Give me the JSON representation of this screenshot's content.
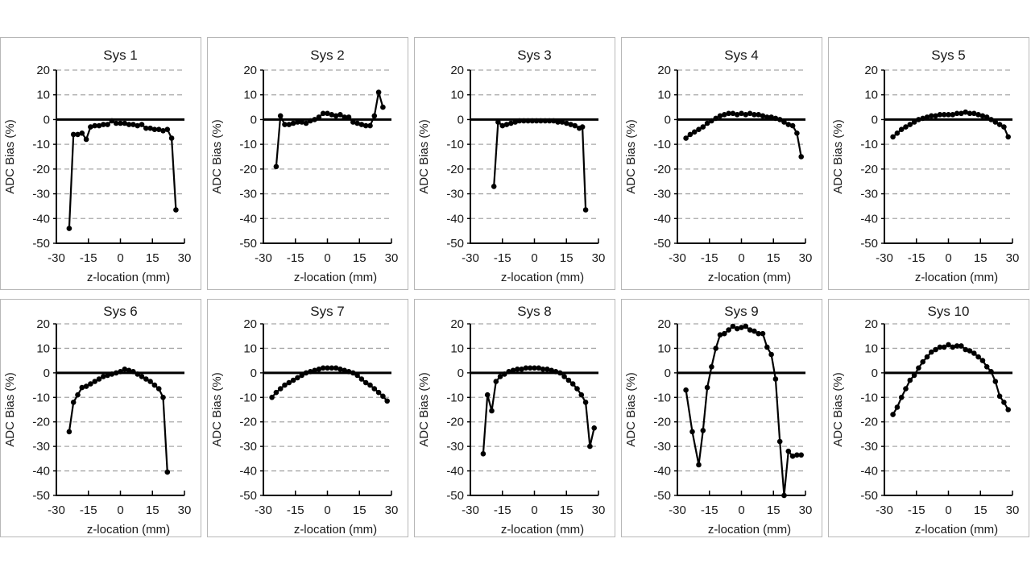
{
  "figure": {
    "background": "#ffffff",
    "panel_border_color": "#b7b7b7",
    "grid_color": "#a8a8a8",
    "series_color": "#000000",
    "zero_line_color": "#000000"
  },
  "axes": {
    "xlabel": "z-location (mm)",
    "ylabel": "ADC Bias (%)",
    "xlim": [
      -30,
      30
    ],
    "ylim": [
      -50,
      20
    ],
    "x_ticks": [
      -30,
      -15,
      0,
      15,
      30
    ],
    "y_ticks": [
      20,
      10,
      0,
      -10,
      -20,
      -30,
      -40,
      -50
    ],
    "gridline_values": [
      20,
      10,
      -10,
      -20,
      -30,
      -40
    ],
    "grid": "dashed horizontal"
  },
  "chart_data": [
    {
      "type": "line",
      "title": "Sys 1",
      "xlabel": "z-location (mm)",
      "ylabel": "ADC Bias (%)",
      "x": [
        -24,
        -22,
        -20,
        -18,
        -16,
        -14,
        -12,
        -10,
        -8,
        -6,
        -4,
        -2,
        0,
        2,
        4,
        6,
        8,
        10,
        12,
        14,
        16,
        18,
        20,
        22,
        24,
        26
      ],
      "y": [
        -44,
        -6,
        -6,
        -5.5,
        -8,
        -3,
        -2.5,
        -2.5,
        -2,
        -2,
        -0.5,
        -1.5,
        -1.5,
        -1.5,
        -2,
        -2,
        -2.5,
        -2,
        -3.5,
        -3.5,
        -4,
        -4,
        -4.5,
        -4,
        -7.5,
        -36.5
      ]
    },
    {
      "type": "line",
      "title": "Sys 2",
      "xlabel": "z-location (mm)",
      "ylabel": "ADC Bias (%)",
      "x": [
        -24,
        -22,
        -20,
        -18,
        -16,
        -14,
        -12,
        -10,
        -8,
        -6,
        -4,
        -2,
        0,
        2,
        4,
        6,
        8,
        10,
        12,
        14,
        16,
        18,
        20,
        22,
        24,
        26
      ],
      "y": [
        -19,
        1.5,
        -2,
        -2,
        -1.5,
        -1,
        -1,
        -1.5,
        -0.5,
        0,
        1,
        2.5,
        2.5,
        2,
        1.5,
        2,
        1,
        1,
        -1,
        -1.5,
        -2,
        -2.5,
        -2.5,
        1.5,
        11,
        5
      ]
    },
    {
      "type": "line",
      "title": "Sys 3",
      "xlabel": "z-location (mm)",
      "ylabel": "ADC Bias (%)",
      "x": [
        -19,
        -17,
        -15,
        -13,
        -11,
        -9,
        -7,
        -5,
        -3,
        -1,
        1,
        3,
        5,
        7,
        9,
        11,
        13,
        15,
        17,
        19,
        21,
        22.5,
        24
      ],
      "y": [
        -27,
        -1,
        -2.5,
        -2,
        -1.5,
        -1,
        -0.5,
        -0.5,
        -0.5,
        -0.5,
        -0.5,
        -0.5,
        -0.5,
        -0.5,
        -0.5,
        -1,
        -1,
        -1.5,
        -2,
        -2.5,
        -3.5,
        -3,
        -36.5
      ]
    },
    {
      "type": "line",
      "title": "Sys 4",
      "xlabel": "z-location (mm)",
      "ylabel": "ADC Bias (%)",
      "x": [
        -26,
        -24,
        -22,
        -20,
        -18,
        -16,
        -14,
        -12,
        -10,
        -8,
        -6,
        -4,
        -2,
        0,
        2,
        4,
        6,
        8,
        10,
        12,
        14,
        16,
        18,
        20,
        22,
        24,
        26,
        28
      ],
      "y": [
        -7.5,
        -6,
        -5,
        -4,
        -3,
        -1.5,
        -0.5,
        0.5,
        1.5,
        2,
        2.5,
        2.5,
        2,
        2.5,
        2,
        2.5,
        2,
        2,
        1.5,
        1,
        1,
        0.5,
        0,
        -1,
        -2,
        -2.5,
        -5.5,
        -15
      ]
    },
    {
      "type": "line",
      "title": "Sys 5",
      "xlabel": "z-location (mm)",
      "ylabel": "ADC Bias (%)",
      "x": [
        -26,
        -24,
        -22,
        -20,
        -18,
        -16,
        -14,
        -12,
        -10,
        -8,
        -6,
        -4,
        -2,
        0,
        2,
        4,
        6,
        8,
        10,
        12,
        14,
        16,
        18,
        20,
        22,
        24,
        26,
        28
      ],
      "y": [
        -7,
        -5.5,
        -4,
        -3,
        -2,
        -1,
        0,
        0.5,
        1,
        1.5,
        1.5,
        2,
        2,
        2,
        2,
        2.5,
        2.5,
        3,
        2.5,
        2.5,
        2,
        1.5,
        1,
        0,
        -1,
        -2,
        -3,
        -7
      ]
    },
    {
      "type": "line",
      "title": "Sys 6",
      "xlabel": "z-location (mm)",
      "ylabel": "ADC Bias (%)",
      "x": [
        -24,
        -22,
        -20,
        -18,
        -16,
        -14,
        -12,
        -10,
        -8,
        -6,
        -4,
        -2,
        0,
        2,
        4,
        6,
        8,
        10,
        12,
        14,
        16,
        18,
        20,
        22
      ],
      "y": [
        -24,
        -12,
        -9,
        -6,
        -5.5,
        -4.5,
        -3.5,
        -2.5,
        -1.5,
        -1,
        -0.5,
        0,
        0.5,
        1.5,
        1,
        0.5,
        -0.5,
        -1.5,
        -2.5,
        -3.5,
        -5,
        -6.5,
        -10,
        -40.5
      ]
    },
    {
      "type": "line",
      "title": "Sys 7",
      "xlabel": "z-location (mm)",
      "ylabel": "ADC Bias (%)",
      "x": [
        -26,
        -24,
        -22,
        -20,
        -18,
        -16,
        -14,
        -12,
        -10,
        -8,
        -6,
        -4,
        -2,
        0,
        2,
        4,
        6,
        8,
        10,
        12,
        14,
        16,
        18,
        20,
        22,
        24,
        26,
        28
      ],
      "y": [
        -10,
        -8,
        -6.5,
        -5,
        -4,
        -3,
        -2,
        -1,
        0,
        0.5,
        1,
        1.5,
        2,
        2,
        2,
        2,
        1.5,
        1,
        0.5,
        0,
        -1,
        -2.5,
        -4,
        -5,
        -6.5,
        -8,
        -9.5,
        -11.5
      ]
    },
    {
      "type": "line",
      "title": "Sys 8",
      "xlabel": "z-location (mm)",
      "ylabel": "ADC Bias (%)",
      "x": [
        -24,
        -22,
        -20,
        -18,
        -16,
        -14,
        -12,
        -10,
        -8,
        -6,
        -4,
        -2,
        0,
        2,
        4,
        6,
        8,
        10,
        12,
        14,
        16,
        18,
        20,
        22,
        24,
        26,
        28
      ],
      "y": [
        -33,
        -9,
        -15.5,
        -3.5,
        -1.5,
        -0.5,
        0.5,
        1,
        1.5,
        1.5,
        2,
        2,
        2,
        2,
        1.5,
        1.5,
        1,
        0.5,
        0,
        -1.5,
        -3,
        -4.5,
        -6.5,
        -9,
        -12,
        -30,
        -22.5
      ]
    },
    {
      "type": "line",
      "title": "Sys 9",
      "xlabel": "z-location (mm)",
      "ylabel": "ADC Bias (%)",
      "x": [
        -26,
        -23,
        -20,
        -18,
        -16,
        -14,
        -12,
        -10,
        -8,
        -6,
        -4,
        -2,
        0,
        2,
        4,
        6,
        8,
        10,
        12,
        14,
        16,
        18,
        20,
        22,
        24,
        26,
        28
      ],
      "y": [
        -7,
        -24,
        -37.5,
        -23.5,
        -6,
        2.5,
        10,
        15.5,
        16,
        17.5,
        19,
        18,
        18.5,
        19,
        17.5,
        17,
        16,
        16,
        10.5,
        7.5,
        -2.5,
        -28,
        -50,
        -32,
        -34,
        -33.5,
        -33.5
      ]
    },
    {
      "type": "line",
      "title": "Sys 10",
      "xlabel": "z-location (mm)",
      "ylabel": "ADC Bias (%)",
      "x": [
        -26,
        -24,
        -22,
        -20,
        -18,
        -16,
        -14,
        -12,
        -10,
        -8,
        -6,
        -4,
        -2,
        0,
        2,
        4,
        6,
        8,
        10,
        12,
        14,
        16,
        18,
        20,
        22,
        24,
        26,
        28
      ],
      "y": [
        -17,
        -14,
        -10,
        -6.5,
        -3,
        -1,
        2,
        4.5,
        6.5,
        8.5,
        9.5,
        10.5,
        10.5,
        11.5,
        10.5,
        11,
        11,
        9.5,
        9,
        8,
        6.5,
        5,
        2.5,
        0.5,
        -3.5,
        -9.5,
        -12,
        -15
      ]
    }
  ]
}
